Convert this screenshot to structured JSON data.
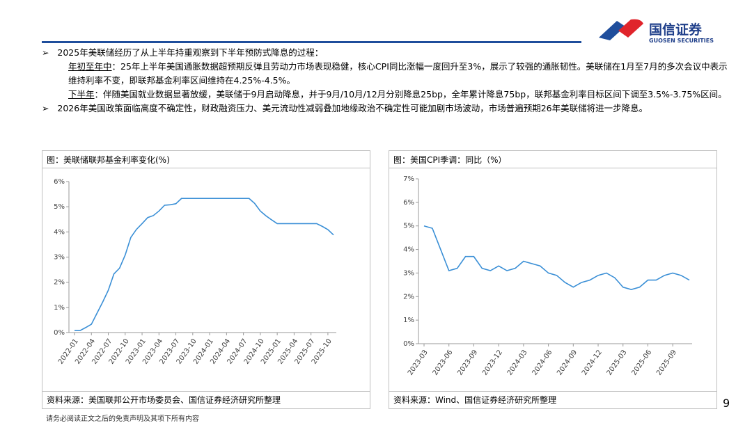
{
  "header": {
    "brand": "国信证券",
    "brand_en": "GUOSEN SECURITIES"
  },
  "bullets": [
    {
      "text": "2025年美联储经历了从上半年持重观察到下半年预防式降息的过程：",
      "subs": [
        {
          "label": "年初至年中",
          "text": "：25年上半年美国通胀数据超预期反弹且劳动力市场表现稳健，核心CPI同比涨幅一度回升至3%，展示了较强的通胀韧性。美联储在1月至7月的多次会议中表示维持利率不变，即联邦基金利率区间维持在4.25%-4.5%。"
        },
        {
          "label": "下半年",
          "text": "：伴随美国就业数据显著放缓，美联储于9月启动降息，并于9月/10月/12月分别降息25bp，全年累计降息75bp，联邦基金利率目标区间下调至3.5%-3.75%区间。"
        }
      ]
    },
    {
      "text": "2026年美国政策面临高度不确定性，财政融资压力、美元流动性减弱叠加地缘政治不确定性可能加剧市场波动，市场普遍预期26年美联储将进一步降息。",
      "subs": []
    }
  ],
  "chart_data": [
    {
      "type": "line",
      "title": "图：美联储联邦基金利率变化(%)",
      "source": "资料来源：美国联邦公开市场委员会、国信证券经济研究所整理",
      "color": "#3a8fd6",
      "categories": [
        "2022-01",
        null,
        null,
        "2022-04",
        null,
        null,
        "2022-07",
        null,
        null,
        "2022-10",
        null,
        null,
        "2023-01",
        null,
        null,
        "2023-04",
        null,
        null,
        "2023-07",
        null,
        null,
        "2023-10",
        null,
        null,
        "2024-01",
        null,
        null,
        "2024-04",
        null,
        null,
        "2024-07",
        null,
        null,
        "2024-10",
        null,
        null,
        "2025-01",
        null,
        null,
        "2025-04",
        null,
        null,
        "2025-07",
        null,
        null,
        "2025-10",
        null
      ],
      "values": [
        0.08,
        0.08,
        0.2,
        0.33,
        0.77,
        1.21,
        1.68,
        2.33,
        2.56,
        3.08,
        3.78,
        4.1,
        4.33,
        4.57,
        4.65,
        4.83,
        5.06,
        5.08,
        5.12,
        5.33,
        5.33,
        5.33,
        5.33,
        5.33,
        5.33,
        5.33,
        5.33,
        5.33,
        5.33,
        5.33,
        5.33,
        5.33,
        5.13,
        4.83,
        4.64,
        4.48,
        4.33,
        4.33,
        4.33,
        4.33,
        4.33,
        4.33,
        4.33,
        4.33,
        4.22,
        4.09,
        3.88
      ],
      "ylim": [
        0,
        6
      ],
      "yticks": [
        {
          "value": 0,
          "label": "0%"
        },
        {
          "value": 1,
          "label": "1%"
        },
        {
          "value": 2,
          "label": "2%"
        },
        {
          "value": 3,
          "label": "3%"
        },
        {
          "value": 4,
          "label": "4%"
        },
        {
          "value": 5,
          "label": "5%"
        },
        {
          "value": 6,
          "label": "6%"
        }
      ]
    },
    {
      "type": "line",
      "title": "图：美国CPI季调：同比（%）",
      "source": "资料来源：Wind、国信证券经济研究所整理",
      "color": "#3a8fd6",
      "categories": [
        "2023-03",
        null,
        null,
        "2023-06",
        null,
        null,
        "2023-09",
        null,
        null,
        "2023-12",
        null,
        null,
        "2024-03",
        null,
        null,
        "2024-06",
        null,
        null,
        "2024-09",
        null,
        null,
        "2024-12",
        null,
        null,
        "2025-03",
        null,
        null,
        "2025-06",
        null,
        null,
        "2025-09",
        null,
        null
      ],
      "values": [
        5.0,
        4.9,
        4.0,
        3.1,
        3.2,
        3.7,
        3.7,
        3.2,
        3.1,
        3.3,
        3.1,
        3.2,
        3.5,
        3.4,
        3.3,
        3.0,
        2.9,
        2.6,
        2.4,
        2.6,
        2.7,
        2.9,
        3.0,
        2.8,
        2.4,
        2.3,
        2.4,
        2.7,
        2.7,
        2.9,
        3.0,
        2.9,
        2.7
      ],
      "ylim": [
        0,
        7
      ],
      "yticks": [
        {
          "value": 0,
          "label": "0%"
        },
        {
          "value": 1,
          "label": "1%"
        },
        {
          "value": 2,
          "label": "2%"
        },
        {
          "value": 3,
          "label": "3%"
        },
        {
          "value": 4,
          "label": "4%"
        },
        {
          "value": 5,
          "label": "5%"
        },
        {
          "value": 6,
          "label": "6%"
        },
        {
          "value": 7,
          "label": "7%"
        }
      ]
    }
  ],
  "footer": {
    "page": "9",
    "disclaimer": "请务必阅读正文之后的免责声明及其项下所有内容"
  }
}
